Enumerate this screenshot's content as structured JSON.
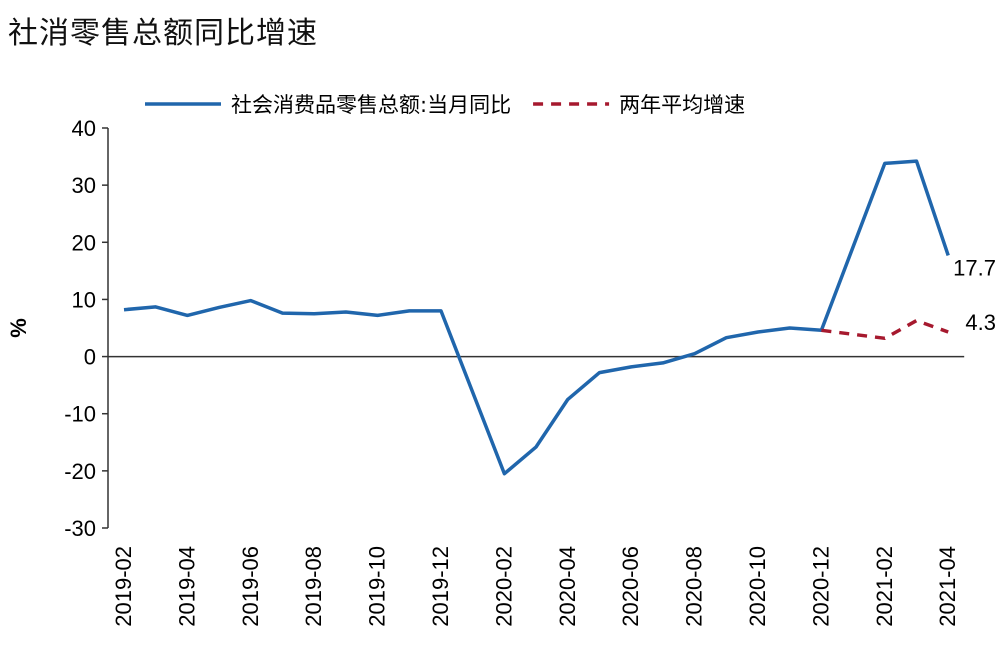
{
  "title": "社消零售总额同比增速",
  "chart_data": {
    "type": "line",
    "title": "社消零售总额同比增速",
    "ylabel": "%",
    "xlabel": "",
    "ylim": [
      -30,
      40
    ],
    "yticks": [
      40,
      30,
      20,
      10,
      0,
      -10,
      -20,
      -30
    ],
    "x": [
      "2019-02",
      "2019-03",
      "2019-04",
      "2019-05",
      "2019-06",
      "2019-07",
      "2019-08",
      "2019-09",
      "2019-10",
      "2019-11",
      "2019-12",
      "2020-01",
      "2020-02",
      "2020-03",
      "2020-04",
      "2020-05",
      "2020-06",
      "2020-07",
      "2020-08",
      "2020-09",
      "2020-10",
      "2020-11",
      "2020-12",
      "2021-01",
      "2021-02",
      "2021-03",
      "2021-04"
    ],
    "xtick_labels": [
      "2019-02",
      "2019-04",
      "2019-06",
      "2019-08",
      "2019-10",
      "2019-12",
      "2020-02",
      "2020-04",
      "2020-06",
      "2020-08",
      "2020-10",
      "2020-12",
      "2021-02",
      "2021-04"
    ],
    "legend_position": "top",
    "grid": false,
    "series": [
      {
        "name": "社会消费品零售总额:当月同比",
        "color": "#2066AC",
        "style": "solid",
        "values": [
          8.2,
          8.7,
          7.2,
          8.6,
          9.8,
          7.6,
          7.5,
          7.8,
          7.2,
          8.0,
          8.0,
          null,
          -20.5,
          -15.8,
          -7.5,
          -2.8,
          -1.8,
          -1.1,
          0.5,
          3.3,
          4.3,
          5.0,
          4.6,
          null,
          33.8,
          34.2,
          17.7
        ],
        "end_label": "17.7"
      },
      {
        "name": "两年平均增速",
        "color": "#A6192E",
        "style": "dashed",
        "values": [
          null,
          null,
          null,
          null,
          null,
          null,
          null,
          null,
          null,
          null,
          null,
          null,
          null,
          null,
          null,
          null,
          null,
          null,
          null,
          null,
          null,
          null,
          4.6,
          null,
          3.2,
          6.3,
          4.3
        ],
        "end_label": "4.3"
      }
    ]
  }
}
